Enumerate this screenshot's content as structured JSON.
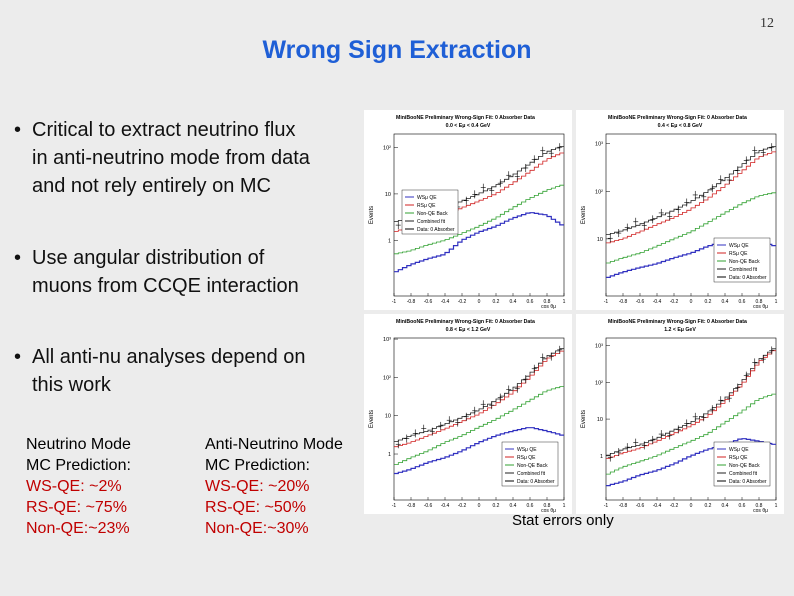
{
  "page_number": "12",
  "title": "Wrong Sign Extraction",
  "bullets": [
    {
      "text": "Critical to extract neutrino flux\nin anti-neutrino mode from data\nand not rely entirely on MC"
    },
    {
      "text": "Use angular distribution of\nmuons from CCQE interaction"
    },
    {
      "text": "All anti-nu analyses depend on\nthis work"
    }
  ],
  "neutrino_col": {
    "h1": "Neutrino Mode",
    "h2": "MC Prediction:",
    "ws": "WS-QE: ~2%",
    "rs": "RS-QE:  ~75%",
    "nonqe": "Non-QE:~23%"
  },
  "antineutrino_col": {
    "h1": "Anti-Neutrino Mode",
    "h2": "MC Prediction:",
    "ws": "WS-QE: ~20%",
    "rs": "RS-QE:  ~50%",
    "nonqe": "Non-QE:~30%"
  },
  "stat_note": "Stat errors only",
  "colors": {
    "title": "#1f5fd6",
    "red": "#c00000",
    "ws": "#3030c0",
    "rs": "#d02020",
    "nonqe": "#30a030"
  },
  "chart_data": [
    {
      "type": "line",
      "title": "MiniBooNE Preliminary Wrong-Sign Fit: 0 Absorber Data",
      "subtitle": "0.0 < Eμ < 0.4 GeV",
      "xlabel": "cos θμ",
      "ylabel": "Events",
      "legend": [
        "WSμ QE",
        "RSμ QE",
        "Non-QE Back",
        "Combined fit",
        "Data: 0 Absorber"
      ],
      "x": [
        -1,
        -0.8,
        -0.6,
        -0.4,
        -0.2,
        0,
        0.2,
        0.4,
        0.6,
        0.8,
        1
      ],
      "yticks": [
        "10²",
        "10",
        "1"
      ],
      "series": [
        {
          "name": "Combined fit",
          "values": [
            2.5,
            3,
            4,
            5,
            7,
            10,
            15,
            25,
            45,
            80,
            110
          ]
        },
        {
          "name": "RS QE",
          "values": [
            1.5,
            2,
            2.5,
            3.5,
            5,
            7,
            10,
            17,
            30,
            55,
            80
          ]
        },
        {
          "name": "Non-QE Back",
          "values": [
            0.5,
            0.6,
            0.8,
            1,
            1.4,
            2,
            3,
            5,
            8,
            12,
            16
          ]
        },
        {
          "name": "WS QE",
          "values": [
            0.2,
            0.3,
            0.4,
            0.5,
            1,
            1.5,
            2,
            3,
            4,
            3.5,
            2
          ]
        }
      ]
    },
    {
      "type": "line",
      "title": "MiniBooNE Preliminary Wrong-Sign Fit: 0 Absorber Data",
      "subtitle": "0.4 < Eμ < 0.8 GeV",
      "xlabel": "cos θμ",
      "ylabel": "Events",
      "legend": [
        "WSμ QE",
        "RSμ QE",
        "Non-QE Back",
        "Combined fit",
        "Data: 0 Absorber"
      ],
      "x": [
        -1,
        -0.8,
        -0.6,
        -0.4,
        -0.2,
        0,
        0.2,
        0.4,
        0.6,
        0.8,
        1
      ],
      "yticks": [
        "10³",
        "10²",
        "10"
      ],
      "series": [
        {
          "name": "Combined fit",
          "values": [
            12,
            15,
            20,
            28,
            40,
            60,
            100,
            180,
            350,
            700,
            900
          ]
        },
        {
          "name": "RS QE",
          "values": [
            8,
            10,
            14,
            20,
            28,
            42,
            70,
            130,
            260,
            520,
            700
          ]
        },
        {
          "name": "Non-QE Back",
          "values": [
            3,
            4,
            5,
            7,
            10,
            14,
            22,
            35,
            55,
            80,
            95
          ]
        },
        {
          "name": "WS QE",
          "values": [
            1.5,
            2,
            2.5,
            3,
            4,
            5,
            7,
            9,
            10,
            9,
            7
          ]
        }
      ]
    },
    {
      "type": "line",
      "title": "MiniBooNE Preliminary Wrong-Sign Fit: 0 Absorber Data",
      "subtitle": "0.8 < Eμ < 1.2 GeV",
      "xlabel": "cos θμ",
      "ylabel": "Events",
      "legend": [
        "WSμ QE",
        "RSμ QE",
        "Non-QE Back",
        "Combined fit",
        "Data: 0 Absorber"
      ],
      "x": [
        -1,
        -0.8,
        -0.6,
        -0.4,
        -0.2,
        0,
        0.2,
        0.4,
        0.6,
        0.8,
        1
      ],
      "yticks": [
        "10³",
        "10²",
        "10",
        "1"
      ],
      "series": [
        {
          "name": "Combined fit",
          "values": [
            2,
            3,
            4,
            6,
            9,
            14,
            25,
            50,
            120,
            350,
            600
          ]
        },
        {
          "name": "RS QE",
          "values": [
            1.5,
            2,
            3,
            4.5,
            7,
            11,
            20,
            40,
            100,
            300,
            520
          ]
        },
        {
          "name": "Non-QE Back",
          "values": [
            0.5,
            0.8,
            1.2,
            2,
            3,
            5,
            8,
            14,
            25,
            45,
            60
          ]
        },
        {
          "name": "WS QE",
          "values": [
            0.3,
            0.4,
            0.6,
            0.8,
            1.2,
            2,
            3,
            4,
            5,
            4,
            3
          ]
        }
      ]
    },
    {
      "type": "line",
      "title": "MiniBooNE Preliminary Wrong-Sign Fit: 0 Absorber Data",
      "subtitle": "1.2 < Eμ GeV",
      "xlabel": "cos θμ",
      "ylabel": "Events",
      "legend": [
        "WSμ QE",
        "RSμ QE",
        "Non-QE Back",
        "Combined fit",
        "Data: 0 Absorber"
      ],
      "x": [
        -1,
        -0.8,
        -0.6,
        -0.4,
        -0.2,
        0,
        0.2,
        0.4,
        0.6,
        0.8,
        1
      ],
      "yticks": [
        "10³",
        "10²",
        "10",
        "1"
      ],
      "series": [
        {
          "name": "Combined fit",
          "values": [
            1,
            1.5,
            2,
            3,
            5,
            8,
            15,
            35,
            100,
            400,
            900
          ]
        },
        {
          "name": "RS QE",
          "values": [
            0.8,
            1.2,
            1.6,
            2.5,
            4,
            6.5,
            12,
            30,
            85,
            350,
            800
          ]
        },
        {
          "name": "Non-QE Back",
          "values": [
            0.3,
            0.5,
            0.7,
            1,
            1.6,
            2.5,
            4,
            8,
            16,
            35,
            50
          ]
        },
        {
          "name": "WS QE",
          "values": [
            0.15,
            0.2,
            0.3,
            0.4,
            0.6,
            1,
            1.5,
            2,
            3,
            2.5,
            2
          ]
        }
      ]
    }
  ]
}
